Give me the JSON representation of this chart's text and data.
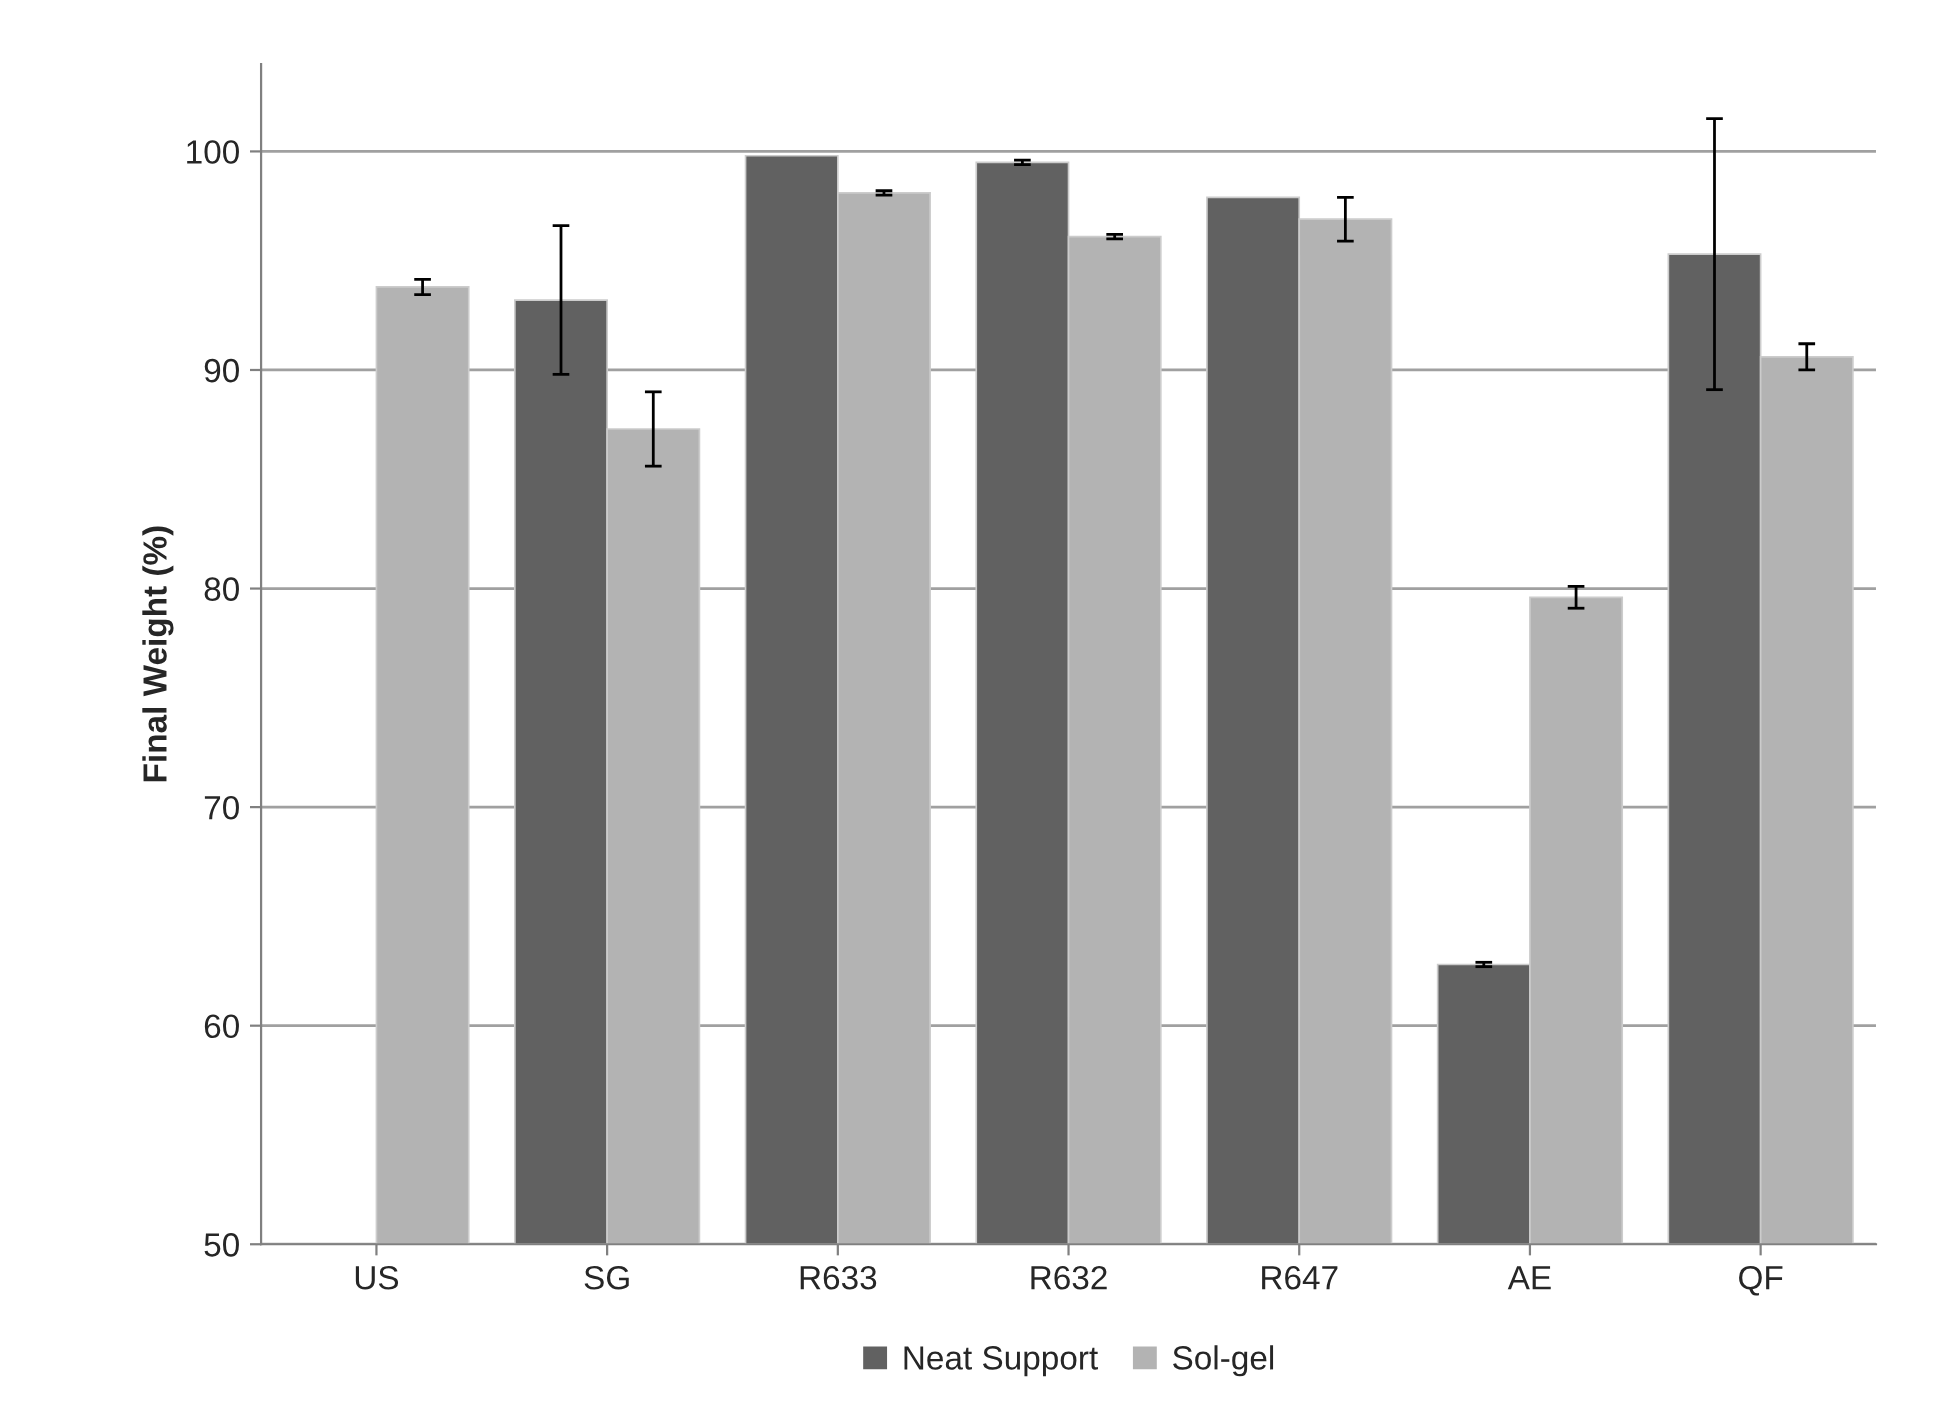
{
  "chart_data": {
    "type": "bar",
    "ylabel": "Final Weight (%)",
    "categories": [
      "US",
      "SG",
      "R633",
      "R632",
      "R647",
      "AE",
      "QF"
    ],
    "series": [
      {
        "name": "Neat Support",
        "color": "#616161",
        "values": [
          null,
          93.2,
          99.8,
          99.5,
          97.9,
          62.8,
          95.3
        ],
        "errors": [
          null,
          3.4,
          null,
          0.1,
          null,
          0.1,
          6.2
        ]
      },
      {
        "name": "Sol-gel",
        "color": "#b3b3b3",
        "values": [
          93.8,
          87.3,
          98.1,
          96.1,
          96.9,
          79.6,
          90.6
        ],
        "errors": [
          0.35,
          1.7,
          0.1,
          0.1,
          1.0,
          0.5,
          0.6
        ]
      }
    ],
    "ylim": [
      50,
      104
    ],
    "yticks": [
      50,
      60,
      70,
      80,
      90,
      100
    ],
    "grid": "y",
    "legend": "bottom"
  }
}
